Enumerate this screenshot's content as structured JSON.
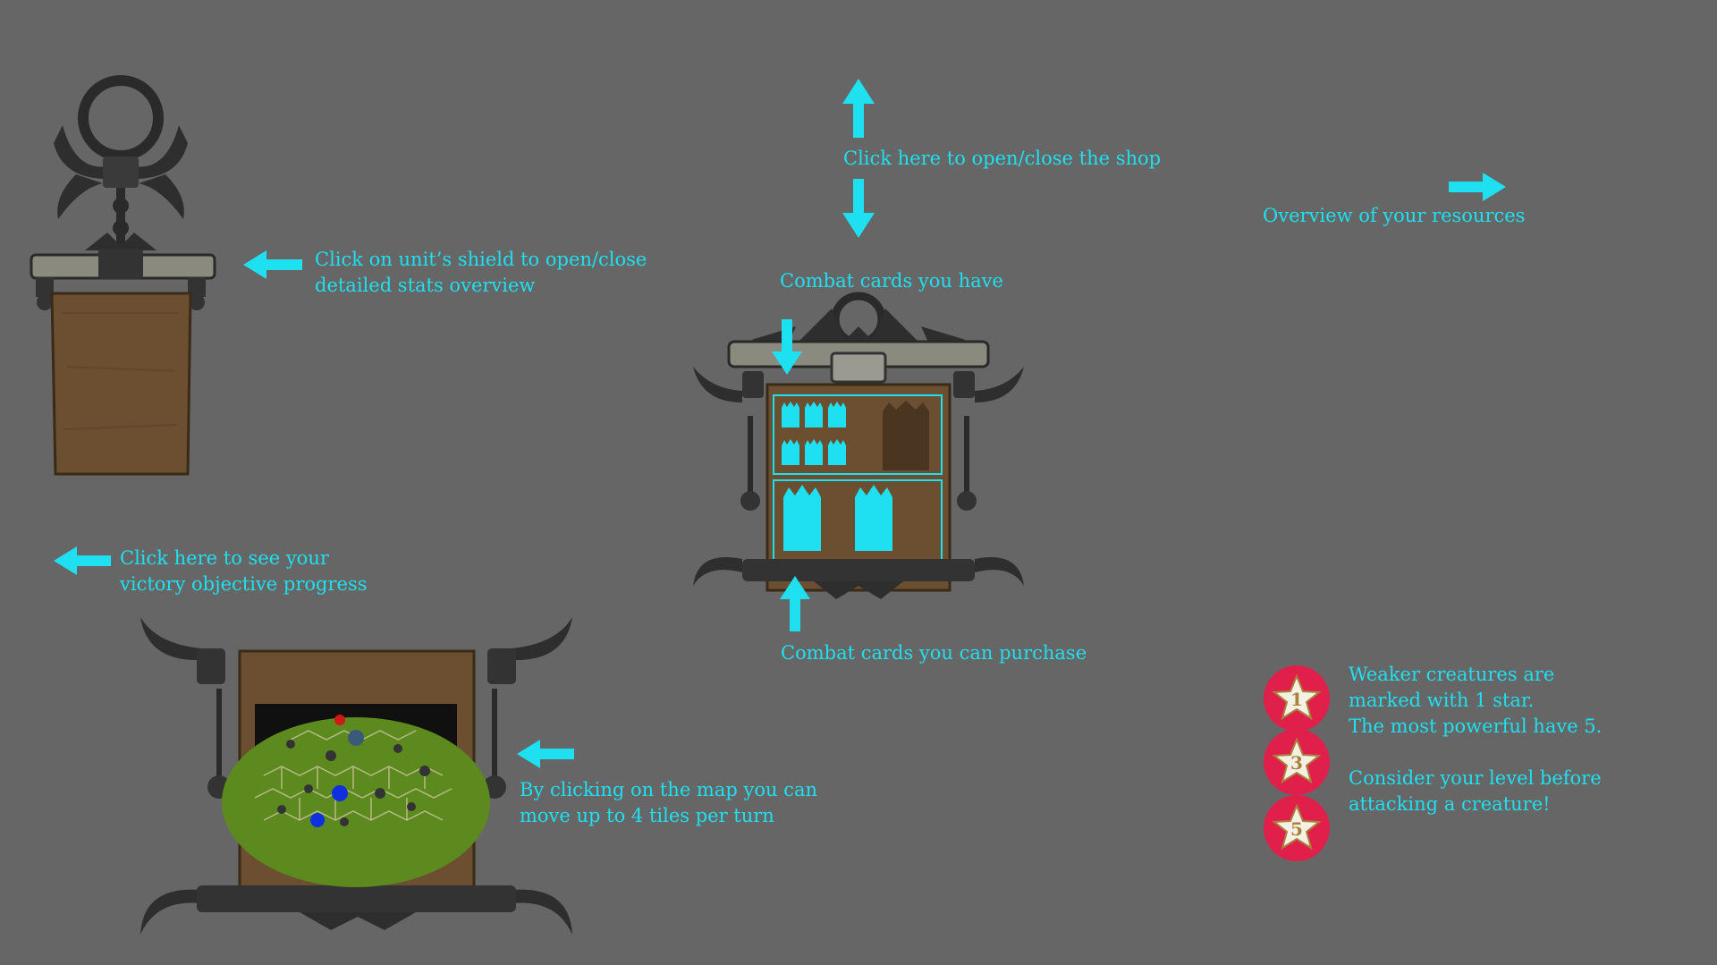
{
  "colors": {
    "background": "#666666",
    "accent": "#1fe0f0",
    "badge": "#e0204a",
    "wood": "#6b4f30",
    "iron": "#2b2b2b"
  },
  "annotations": {
    "unit_shield": "Click on unit’s shield to open/close\ndetailed stats overview",
    "shop_toggle": "Click here to open/close the shop",
    "resources": "Overview of your resources",
    "cards_have": "Combat cards you have",
    "cards_purchase": "Combat cards you can purchase",
    "victory": "Click here to see your\nvictory objective progress",
    "map_move": "By clicking on the map you can\nmove up to 4 tiles per turn",
    "creature_stars": "Weaker creatures are\nmarked with 1 star.\nThe most powerful have 5.\n\nConsider your level before\nattacking a creature!"
  },
  "badges": [
    {
      "stars": "1",
      "icon": "star-icon"
    },
    {
      "stars": "3",
      "icon": "star-icon"
    },
    {
      "stars": "5",
      "icon": "star-icon"
    }
  ],
  "icons": [
    "arrow-left-icon",
    "arrow-up-icon",
    "arrow-down-icon",
    "arrow-right-icon",
    "card-icon",
    "star-icon"
  ]
}
